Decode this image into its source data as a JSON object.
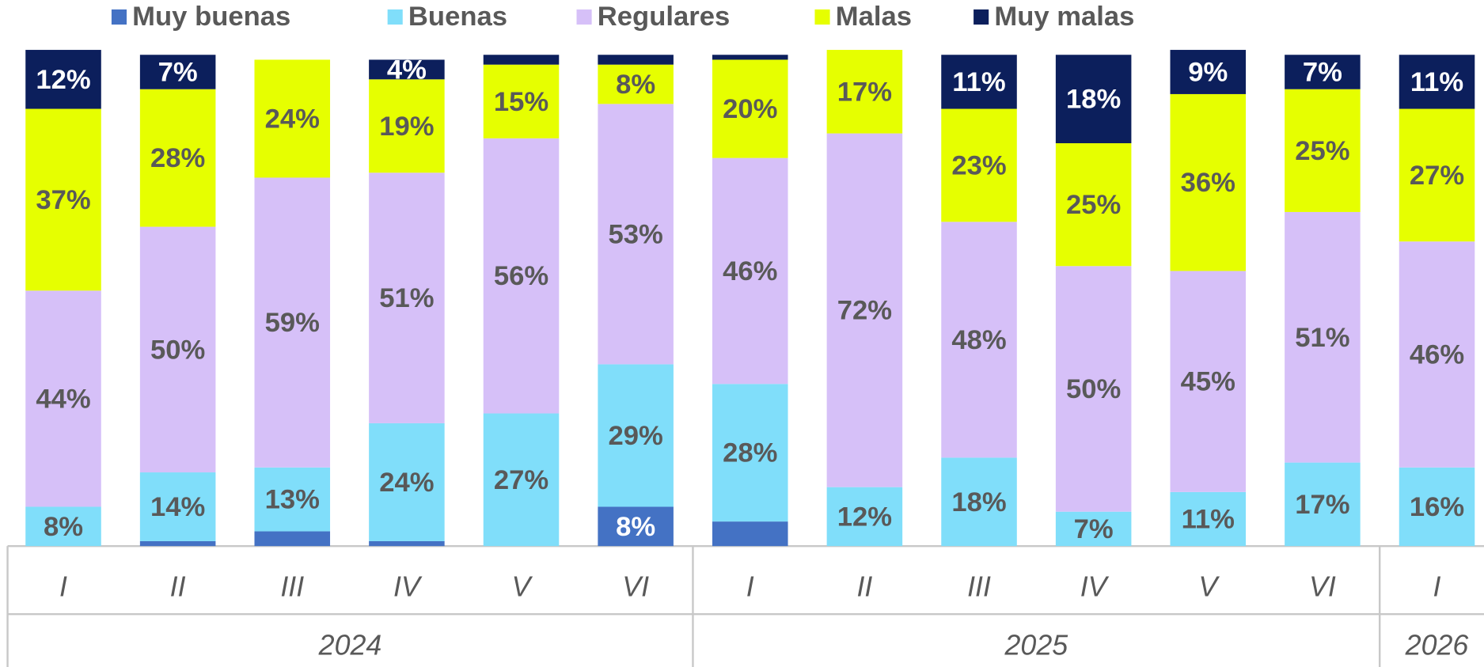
{
  "chart_data": {
    "type": "stacked_bar",
    "categories": [
      "I",
      "II",
      "III",
      "IV",
      "V",
      "VI",
      "I",
      "II",
      "III",
      "IV",
      "V",
      "VI",
      "I"
    ],
    "groups": [
      {
        "label": "2024",
        "count": 6
      },
      {
        "label": "2025",
        "count": 6
      },
      {
        "label": "2026",
        "count": 1
      }
    ],
    "ylim": [
      0,
      100
    ],
    "series": [
      {
        "name": "Muy buenas",
        "color": "#4472c4",
        "label_color": "#ffffff",
        "values": [
          0,
          1,
          3,
          1,
          0,
          8,
          5,
          0,
          0,
          0,
          0,
          0,
          0
        ],
        "value_labels": [
          null,
          null,
          null,
          null,
          null,
          "8%",
          null,
          null,
          null,
          null,
          null,
          null,
          null
        ]
      },
      {
        "name": "Buenas",
        "color": "#80defa",
        "label_color": "#595959",
        "values": [
          8,
          14,
          13,
          24,
          27,
          29,
          28,
          12,
          18,
          7,
          11,
          17,
          16
        ],
        "value_labels": [
          "8%",
          "14%",
          "13%",
          "24%",
          "27%",
          "29%",
          "28%",
          "12%",
          "18%",
          "7%",
          "11%",
          "17%",
          "16%"
        ]
      },
      {
        "name": "Regulares",
        "color": "#d6c0f8",
        "label_color": "#595959",
        "values": [
          44,
          50,
          59,
          51,
          56,
          53,
          46,
          72,
          48,
          50,
          45,
          51,
          46
        ],
        "value_labels": [
          "44%",
          "50%",
          "59%",
          "51%",
          "56%",
          "53%",
          "46%",
          "72%",
          "48%",
          "50%",
          "45%",
          "51%",
          "46%"
        ]
      },
      {
        "name": "Malas",
        "color": "#e6ff00",
        "label_color": "#595959",
        "values": [
          37,
          28,
          24,
          19,
          15,
          8,
          20,
          17,
          23,
          25,
          36,
          25,
          27
        ],
        "value_labels": [
          "37%",
          "28%",
          "24%",
          "19%",
          "15%",
          "8%",
          "20%",
          "17%",
          "23%",
          "25%",
          "36%",
          "25%",
          "27%"
        ]
      },
      {
        "name": "Muy malas",
        "color": "#0c1f5c",
        "label_color": "#ffffff",
        "values": [
          12,
          7,
          0,
          4,
          2,
          2,
          1,
          0,
          11,
          18,
          9,
          7,
          11
        ],
        "value_labels": [
          "12%",
          "7%",
          null,
          "4%",
          null,
          null,
          null,
          null,
          "11%",
          "18%",
          "9%",
          "7%",
          "11%"
        ]
      }
    ]
  }
}
